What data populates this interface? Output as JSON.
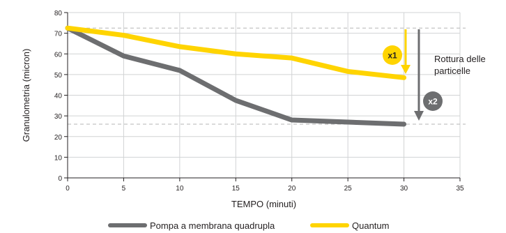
{
  "chart_data": {
    "type": "line",
    "xlabel": "TEMPO (minuti)",
    "ylabel": "Granulometria (micron)",
    "xlim": [
      0,
      35
    ],
    "ylim": [
      0,
      80
    ],
    "xticks": [
      0,
      5,
      10,
      15,
      20,
      25,
      30,
      35
    ],
    "yticks": [
      0,
      10,
      20,
      30,
      40,
      50,
      60,
      70,
      80
    ],
    "grid": true,
    "legend_position": "bottom",
    "series": [
      {
        "name": "Pompa a membrana quadrupla",
        "color": "#6d6e70",
        "x": [
          0,
          5,
          10,
          15,
          20,
          25,
          30
        ],
        "y": [
          72.5,
          59,
          52,
          37.5,
          28,
          27,
          26
        ]
      },
      {
        "name": "Quantum",
        "color": "#ffd400",
        "x": [
          0,
          5,
          10,
          15,
          20,
          25,
          30
        ],
        "y": [
          72.5,
          69,
          63.5,
          60,
          58,
          51.5,
          48.5
        ]
      }
    ],
    "reference_lines": [
      72.5,
      26
    ],
    "annotations": {
      "badge_x1": "x1",
      "badge_x2": "x2",
      "breakage_line1": "Rottura delle",
      "breakage_line2": "particelle"
    }
  }
}
